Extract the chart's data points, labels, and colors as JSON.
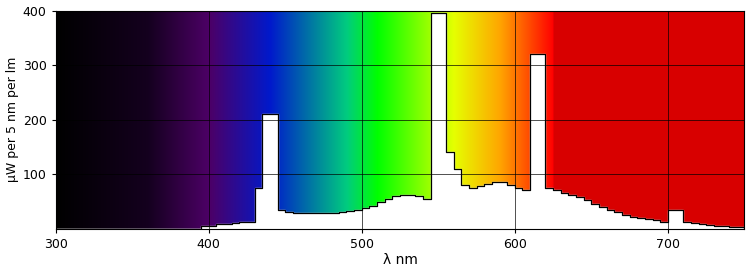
{
  "xlabel": "λ nm",
  "ylabel": "μW per 5 nm per lm",
  "xlim": [
    300,
    750
  ],
  "ylim": [
    0,
    400
  ],
  "xticks": [
    300,
    400,
    500,
    600,
    700
  ],
  "yticks": [
    100,
    200,
    300,
    400
  ],
  "spectral_spd": [
    [
      300,
      0
    ],
    [
      380,
      0
    ],
    [
      385,
      0
    ],
    [
      390,
      0
    ],
    [
      395,
      5
    ],
    [
      400,
      5
    ],
    [
      405,
      8
    ],
    [
      410,
      8
    ],
    [
      415,
      10
    ],
    [
      420,
      12
    ],
    [
      425,
      12
    ],
    [
      430,
      75
    ],
    [
      435,
      210
    ],
    [
      440,
      210
    ],
    [
      445,
      35
    ],
    [
      450,
      30
    ],
    [
      455,
      28
    ],
    [
      460,
      28
    ],
    [
      465,
      28
    ],
    [
      470,
      28
    ],
    [
      475,
      28
    ],
    [
      480,
      28
    ],
    [
      485,
      30
    ],
    [
      490,
      32
    ],
    [
      495,
      35
    ],
    [
      500,
      38
    ],
    [
      505,
      42
    ],
    [
      510,
      48
    ],
    [
      515,
      55
    ],
    [
      520,
      60
    ],
    [
      525,
      62
    ],
    [
      530,
      62
    ],
    [
      535,
      60
    ],
    [
      540,
      55
    ],
    [
      545,
      395
    ],
    [
      550,
      395
    ],
    [
      555,
      140
    ],
    [
      560,
      110
    ],
    [
      565,
      80
    ],
    [
      570,
      75
    ],
    [
      575,
      78
    ],
    [
      580,
      82
    ],
    [
      585,
      85
    ],
    [
      590,
      85
    ],
    [
      595,
      80
    ],
    [
      600,
      75
    ],
    [
      605,
      70
    ],
    [
      610,
      320
    ],
    [
      615,
      320
    ],
    [
      620,
      75
    ],
    [
      625,
      70
    ],
    [
      630,
      65
    ],
    [
      635,
      62
    ],
    [
      640,
      58
    ],
    [
      645,
      52
    ],
    [
      650,
      45
    ],
    [
      655,
      40
    ],
    [
      660,
      35
    ],
    [
      665,
      30
    ],
    [
      670,
      25
    ],
    [
      675,
      22
    ],
    [
      680,
      20
    ],
    [
      685,
      18
    ],
    [
      690,
      15
    ],
    [
      695,
      12
    ],
    [
      700,
      35
    ],
    [
      705,
      35
    ],
    [
      710,
      12
    ],
    [
      715,
      10
    ],
    [
      720,
      8
    ],
    [
      725,
      6
    ],
    [
      730,
      5
    ],
    [
      735,
      4
    ],
    [
      740,
      3
    ],
    [
      745,
      3
    ],
    [
      750,
      0
    ]
  ]
}
